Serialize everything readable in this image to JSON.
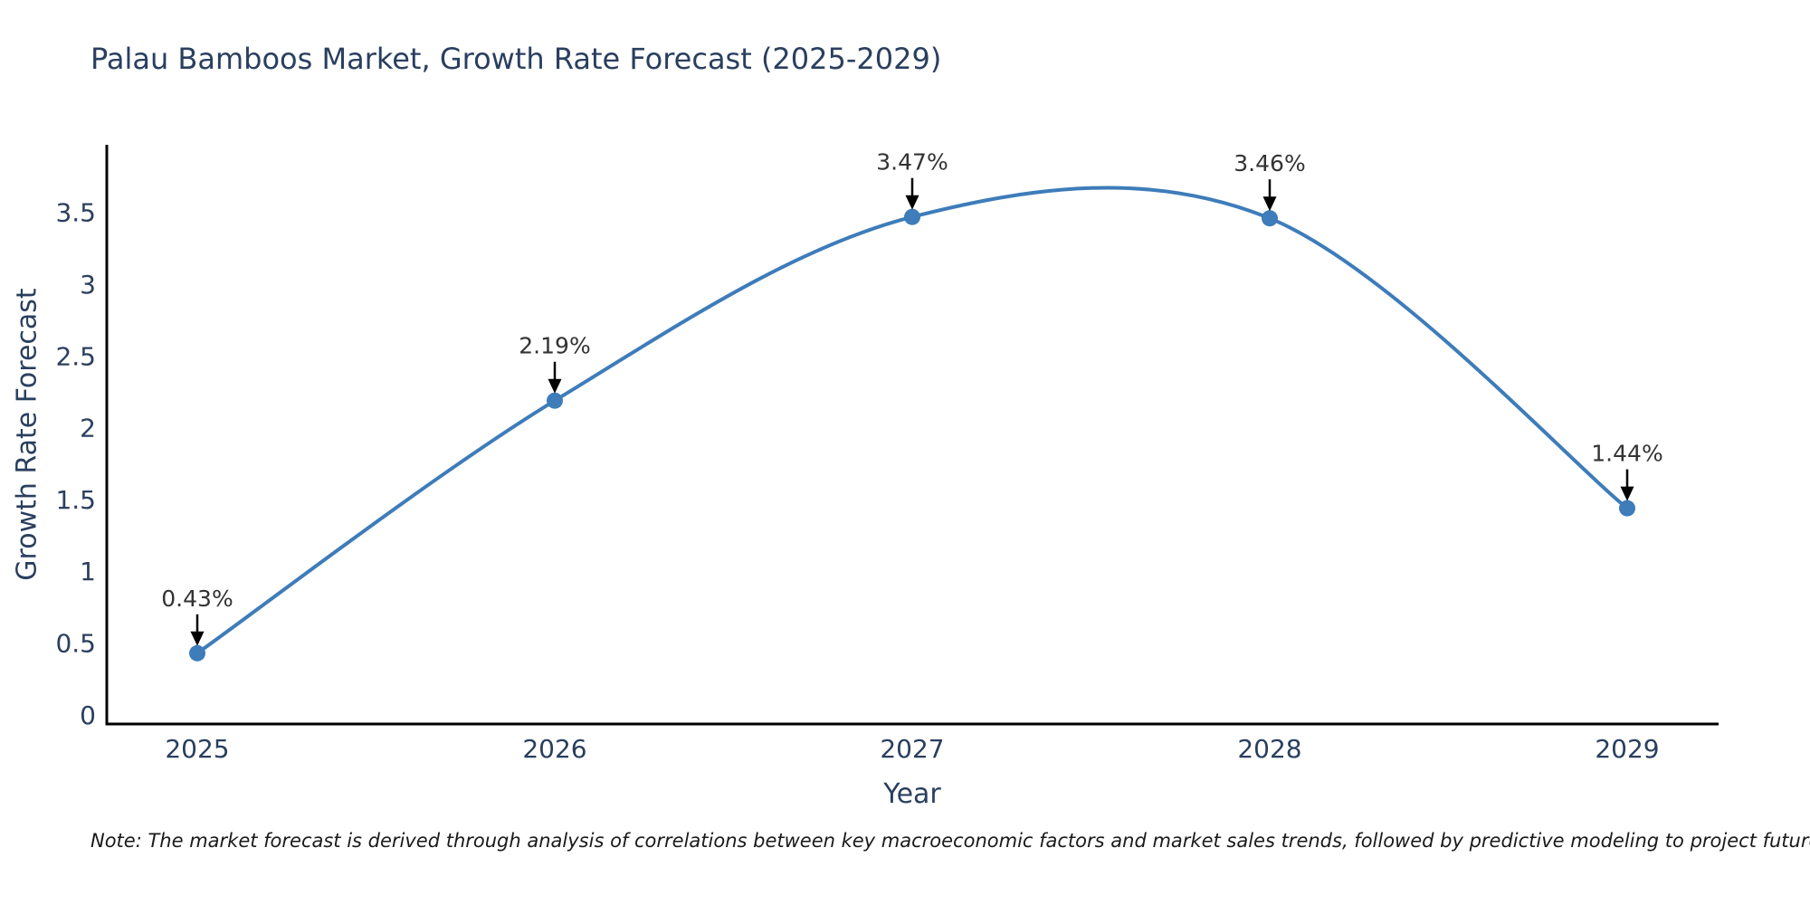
{
  "chart_data": {
    "type": "line",
    "title": "Palau Bamboos Market, Growth Rate Forecast (2025-2029)",
    "xlabel": "Year",
    "ylabel": "Growth Rate Forecast",
    "categories": [
      "2025",
      "2026",
      "2027",
      "2028",
      "2029"
    ],
    "series": [
      {
        "name": "Growth Rate Forecast",
        "values": [
          0.43,
          2.19,
          3.47,
          3.46,
          1.44
        ]
      }
    ],
    "point_labels": [
      "0.43%",
      "2.19%",
      "3.47%",
      "3.46%",
      "1.44%"
    ],
    "yticks": [
      "0",
      "0.5",
      "1",
      "1.5",
      "2",
      "2.5",
      "3",
      "3.5"
    ],
    "ylim": [
      0,
      3.97
    ],
    "line_shape": "spline",
    "grid": false,
    "legend": "none",
    "colors": {
      "line": "#3E7CBA",
      "marker": "#3E7CBA",
      "axis": "#000000",
      "title_text": "#2a3f5f",
      "tick_text": "#2a3f5f",
      "annotation_text": "#333333",
      "arrow": "#000000",
      "background": "#ffffff"
    }
  },
  "note": {
    "text": "Note: The market forecast is derived through analysis of correlations between key macroeconomic factors and market sales trends, followed by predictive modeling to project future sales"
  }
}
